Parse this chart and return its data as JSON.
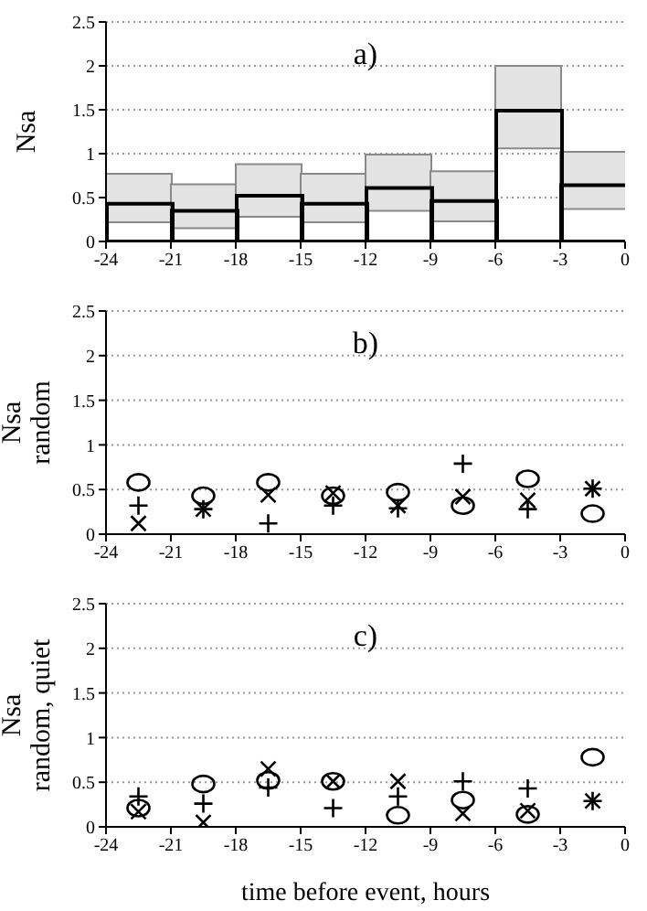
{
  "chart_data": [
    {
      "type": "histogram",
      "title": "a)",
      "ylabel": "Nsa",
      "bins": [
        -24,
        -21,
        -18,
        -15,
        -12,
        -9,
        -6,
        -3,
        0
      ],
      "series": [
        {
          "color": "#e3e3e3",
          "base": [
            0.22,
            0.15,
            0.28,
            0.22,
            0.35,
            0.23,
            1.06,
            0.37
          ],
          "values": [
            0.55,
            0.5,
            0.6,
            0.55,
            0.64,
            0.57,
            0.94,
            0.65
          ]
        },
        {
          "color": "#000000",
          "values": [
            0.43,
            0.35,
            0.52,
            0.43,
            0.61,
            0.46,
            1.49,
            0.64
          ]
        }
      ],
      "xlim": [
        -24,
        0
      ],
      "xticks": [
        -24,
        -21,
        -18,
        -15,
        -12,
        -9,
        -6,
        -3,
        0
      ],
      "ylim": [
        0,
        2.5
      ],
      "yticks": [
        0,
        0.5,
        1,
        1.5,
        2,
        2.5
      ],
      "grid": "y",
      "legend": false
    },
    {
      "type": "scatter",
      "title": "b)",
      "ylabel": "Nsa\nrandom",
      "x": [
        -22.5,
        -19.5,
        -16.5,
        -13.5,
        -10.5,
        -7.5,
        -4.5,
        -1.5
      ],
      "series": [
        {
          "color": "#000000",
          "marker": "circle",
          "values": [
            0.58,
            0.43,
            0.58,
            0.43,
            0.47,
            0.32,
            0.62,
            0.23
          ]
        },
        {
          "color": "#000000",
          "marker": "plus",
          "values": [
            0.32,
            0.28,
            0.12,
            0.32,
            0.29,
            0.79,
            0.28,
            0.51
          ]
        },
        {
          "color": "#000000",
          "marker": "cross",
          "values": [
            0.12,
            0.28,
            0.44,
            0.46,
            0.32,
            0.42,
            0.38,
            0.51
          ]
        }
      ],
      "xlim": [
        -24,
        0
      ],
      "xticks": [
        -24,
        -21,
        -18,
        -15,
        -12,
        -9,
        -6,
        -3,
        0
      ],
      "ylim": [
        0,
        2.5
      ],
      "yticks": [
        0,
        0.5,
        1,
        1.5,
        2,
        2.5
      ],
      "grid": "y",
      "legend": false
    },
    {
      "type": "scatter",
      "title": "c)",
      "ylabel": "Nsa\nrandom, quiet",
      "xlabel": "time before event, hours",
      "x": [
        -22.5,
        -19.5,
        -16.5,
        -13.5,
        -10.5,
        -7.5,
        -4.5,
        -1.5
      ],
      "series": [
        {
          "color": "#000000",
          "marker": "circle",
          "values": [
            0.21,
            0.48,
            0.52,
            0.51,
            0.13,
            0.3,
            0.14,
            0.78
          ]
        },
        {
          "color": "#000000",
          "marker": "plus",
          "values": [
            0.34,
            0.26,
            0.44,
            0.21,
            0.34,
            0.51,
            0.43,
            0.29
          ]
        },
        {
          "color": "#000000",
          "marker": "cross",
          "values": [
            0.17,
            0.05,
            0.65,
            0.51,
            0.51,
            0.15,
            0.18,
            0.29
          ]
        }
      ],
      "xlim": [
        -24,
        0
      ],
      "xticks": [
        -24,
        -21,
        -18,
        -15,
        -12,
        -9,
        -6,
        -3,
        0
      ],
      "ylim": [
        0,
        2.5
      ],
      "yticks": [
        0,
        0.5,
        1,
        1.5,
        2,
        2.5
      ],
      "grid": "y",
      "legend": false
    }
  ]
}
